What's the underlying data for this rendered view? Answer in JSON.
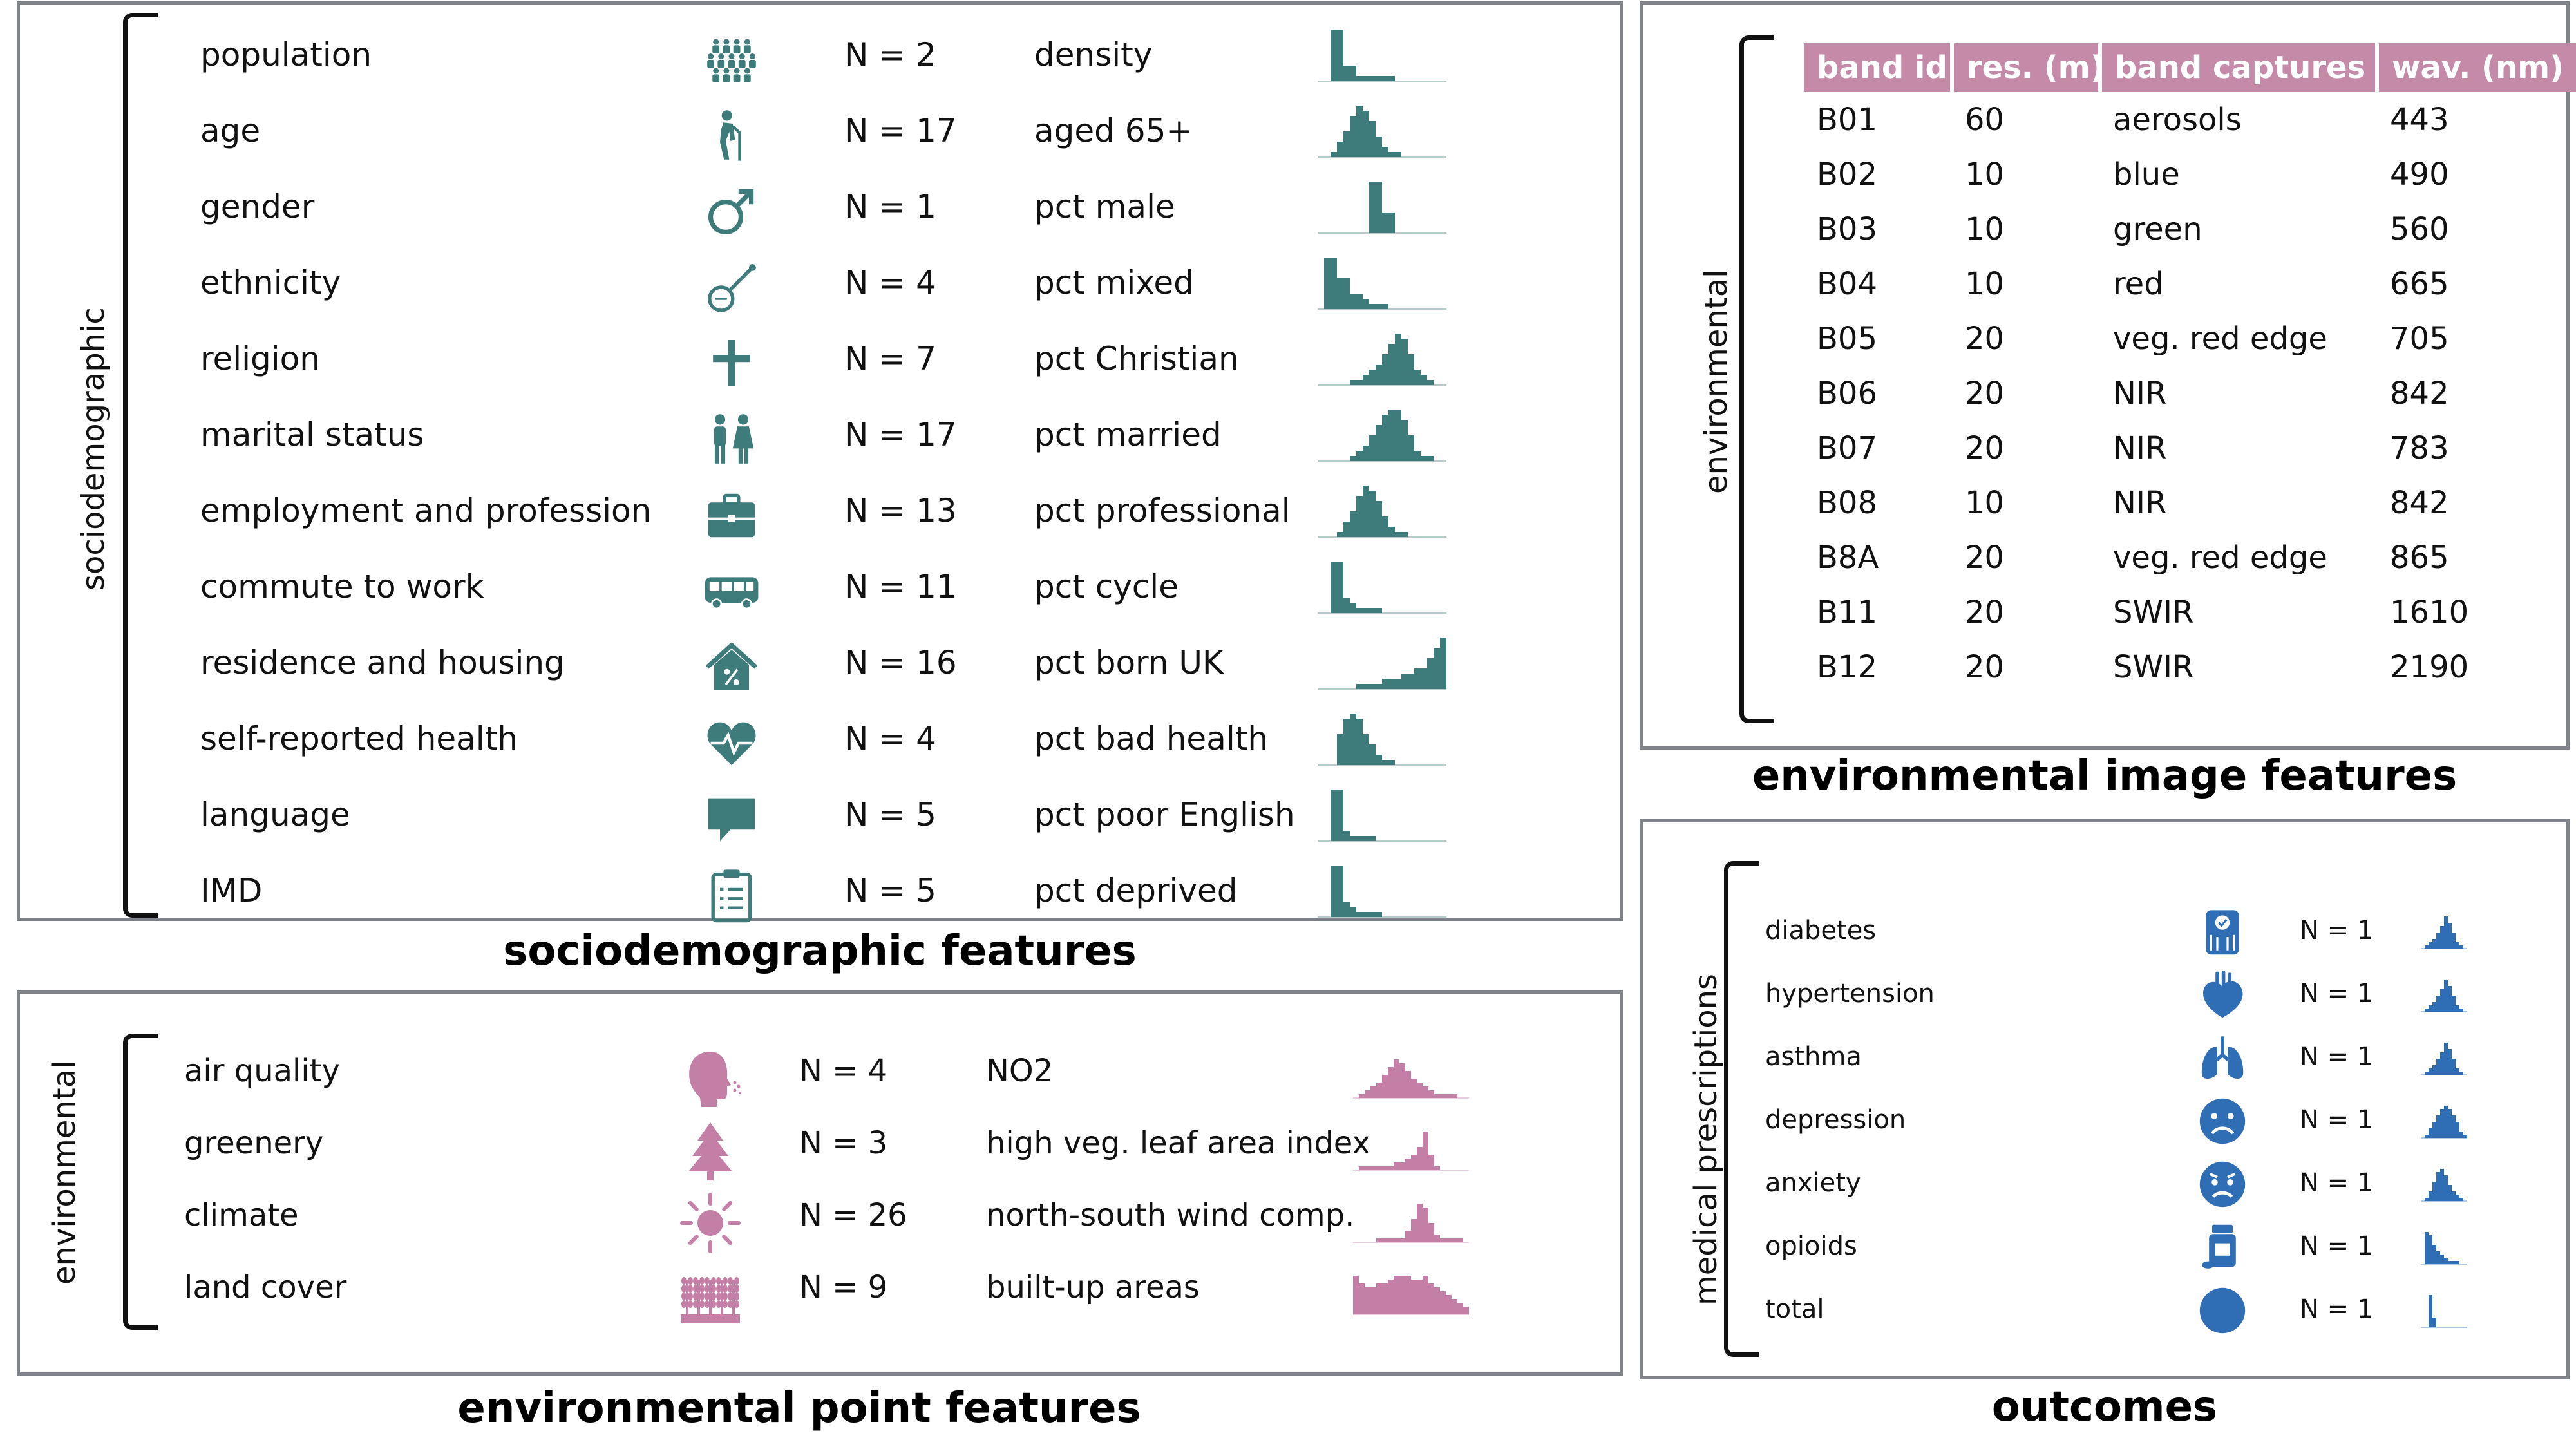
{
  "colors": {
    "socio": "#3e7b7b",
    "env_point": "#c47fa6",
    "outcomes": "#2f6db5",
    "table_header": "#c48aa8",
    "panel_border": "#7f8288"
  },
  "sociodemographic": {
    "side_label": "sociodemographic",
    "caption": "sociodemographic features",
    "rows": [
      {
        "name": "population",
        "icon": "population-icon",
        "count": "N = 2",
        "variable": "density",
        "hist": [
          0,
          0,
          10,
          10,
          3,
          3,
          1,
          1,
          1,
          1,
          1,
          1,
          0,
          0,
          0,
          0,
          0,
          0,
          0,
          0
        ]
      },
      {
        "name": "age",
        "icon": "elderly-person-icon",
        "count": "N = 17",
        "variable": "aged 65+",
        "hist": [
          0,
          0,
          1,
          3,
          5,
          8,
          10,
          9,
          7,
          4,
          2,
          1,
          1,
          0,
          0,
          0,
          0,
          0,
          0,
          0
        ]
      },
      {
        "name": "gender",
        "icon": "male-symbol-icon",
        "count": "N = 1",
        "variable": "pct male",
        "hist": [
          0,
          0,
          0,
          0,
          0,
          0,
          0,
          0,
          10,
          10,
          4,
          4,
          0,
          0,
          0,
          0,
          0,
          0,
          0,
          0
        ]
      },
      {
        "name": "ethnicity",
        "icon": "banjo-icon",
        "count": "N = 4",
        "variable": "pct mixed",
        "hist": [
          0,
          10,
          10,
          6,
          6,
          3,
          3,
          2,
          1,
          1,
          1,
          0,
          0,
          0,
          0,
          0,
          0,
          0,
          0,
          0
        ]
      },
      {
        "name": "religion",
        "icon": "cross-icon",
        "count": "N =  7",
        "variable": "pct Christian",
        "hist": [
          0,
          0,
          0,
          0,
          0,
          1,
          1,
          2,
          3,
          4,
          6,
          8,
          10,
          9,
          6,
          3,
          2,
          1,
          0,
          0
        ]
      },
      {
        "name": "marital status",
        "icon": "couple-icon",
        "count": "N = 17",
        "variable": "pct married",
        "hist": [
          0,
          0,
          0,
          0,
          0,
          1,
          2,
          3,
          5,
          7,
          9,
          10,
          10,
          8,
          5,
          2,
          1,
          1,
          0,
          0
        ]
      },
      {
        "name": "employment  and profession",
        "icon": "briefcase-icon",
        "count": "N = 13",
        "variable": "pct professional",
        "hist": [
          0,
          0,
          0,
          1,
          3,
          5,
          8,
          10,
          9,
          7,
          4,
          2,
          1,
          1,
          0,
          0,
          0,
          0,
          0,
          0
        ]
      },
      {
        "name": "commute to work",
        "icon": "bus-icon",
        "count": "N = 11",
        "variable": "pct cycle",
        "hist": [
          0,
          0,
          10,
          10,
          3,
          2,
          1,
          1,
          1,
          1,
          0,
          0,
          0,
          0,
          0,
          0,
          0,
          0,
          0,
          0
        ]
      },
      {
        "name": "residence and housing",
        "icon": "house-percent-icon",
        "count": "N =  16",
        "variable": "pct born UK",
        "hist": [
          0,
          0,
          0,
          0,
          0,
          0,
          1,
          1,
          1,
          1,
          2,
          2,
          2,
          3,
          3,
          4,
          4,
          6,
          8,
          10
        ]
      },
      {
        "name": "self-reported health",
        "icon": "heart-pulse-icon",
        "count": "N = 4",
        "variable": "pct bad health",
        "hist": [
          0,
          0,
          0,
          6,
          9,
          10,
          9,
          6,
          4,
          2,
          1,
          1,
          0,
          0,
          0,
          0,
          0,
          0,
          0,
          0
        ]
      },
      {
        "name": "language",
        "icon": "speech-bubble-icon",
        "count": "N = 5",
        "variable": "pct poor English",
        "hist": [
          0,
          0,
          10,
          10,
          2,
          1,
          1,
          1,
          1,
          0,
          0,
          0,
          0,
          0,
          0,
          0,
          0,
          0,
          0,
          0
        ]
      },
      {
        "name": "IMD",
        "icon": "clipboard-icon",
        "count": "N = 5",
        "variable": "pct deprived",
        "hist": [
          0,
          0,
          10,
          10,
          3,
          2,
          1,
          1,
          1,
          1,
          0,
          0,
          0,
          0,
          0,
          0,
          0,
          0,
          0,
          0
        ]
      }
    ]
  },
  "environmental_point": {
    "side_label": "environmental",
    "caption": "environmental point features",
    "rows": [
      {
        "name": "air quality",
        "icon": "breathing-head-icon",
        "count": "N = 4",
        "variable": "NO2",
        "hist": [
          0,
          1,
          2,
          3,
          4,
          6,
          8,
          10,
          9,
          7,
          5,
          4,
          3,
          2,
          1,
          1,
          1,
          1,
          0,
          0
        ]
      },
      {
        "name": "greenery",
        "icon": "tree-icon",
        "count": "N = 3",
        "variable": "high veg. leaf area index",
        "hist": [
          0,
          1,
          1,
          1,
          1,
          1,
          1,
          2,
          2,
          3,
          4,
          6,
          10,
          4,
          1,
          0,
          0,
          0,
          0,
          0
        ]
      },
      {
        "name": "climate",
        "icon": "sun-icon",
        "count": "N = 26",
        "variable": "north-south wind comp.",
        "hist": [
          0,
          0,
          0,
          0,
          1,
          1,
          1,
          1,
          1,
          3,
          6,
          10,
          9,
          5,
          2,
          1,
          1,
          1,
          1,
          0
        ]
      },
      {
        "name": "land cover",
        "icon": "wheat-field-icon",
        "count": "N = 9",
        "variable": "built-up areas",
        "hist": [
          10,
          8,
          7,
          7,
          8,
          8,
          9,
          10,
          10,
          10,
          9,
          9,
          10,
          8,
          7,
          6,
          5,
          4,
          3,
          2
        ]
      }
    ]
  },
  "environmental_image": {
    "side_label": "environmental",
    "caption": "environmental image features",
    "headers": [
      "band id",
      "res. (m)",
      "band captures",
      "wav. (nm)"
    ],
    "rows": [
      [
        "B01",
        "60",
        "aerosols",
        "443"
      ],
      [
        "B02",
        "10",
        "blue",
        "490"
      ],
      [
        "B03",
        "10",
        "green",
        "560"
      ],
      [
        "B04",
        "10",
        "red",
        "665"
      ],
      [
        "B05",
        "20",
        "veg. red edge",
        "705"
      ],
      [
        "B06",
        "20",
        "NIR",
        "842"
      ],
      [
        "B07",
        "20",
        "NIR",
        "783"
      ],
      [
        "B08",
        "10",
        "NIR",
        "842"
      ],
      [
        "B8A",
        "20",
        "veg. red edge",
        "865"
      ],
      [
        "B11",
        "20",
        "SWIR",
        "1610"
      ],
      [
        "B12",
        "20",
        "SWIR",
        "2190"
      ]
    ]
  },
  "outcomes": {
    "side_label": "medical prescriptions",
    "caption": "outcomes",
    "rows": [
      {
        "name": "diabetes",
        "icon": "glucose-meter-icon",
        "count": "N = 1",
        "hist": [
          0,
          1,
          2,
          3,
          5,
          7,
          10,
          8,
          5,
          2,
          1,
          0
        ]
      },
      {
        "name": "hypertension",
        "icon": "heart-icon",
        "count": "N = 1",
        "hist": [
          0,
          1,
          2,
          3,
          5,
          7,
          10,
          8,
          5,
          2,
          1,
          0
        ]
      },
      {
        "name": "asthma",
        "icon": "lungs-icon",
        "count": "N = 1",
        "hist": [
          0,
          1,
          2,
          3,
          5,
          7,
          10,
          8,
          5,
          2,
          1,
          0
        ]
      },
      {
        "name": "depression",
        "icon": "sad-face-icon",
        "count": "N = 1",
        "hist": [
          0,
          1,
          3,
          5,
          7,
          9,
          10,
          9,
          7,
          5,
          2,
          1
        ]
      },
      {
        "name": "anxiety",
        "icon": "worried-face-icon",
        "count": "N = 1",
        "hist": [
          0,
          1,
          3,
          6,
          9,
          10,
          8,
          5,
          3,
          2,
          1,
          0
        ]
      },
      {
        "name": "opioids",
        "icon": "pill-bottle-icon",
        "count": "N = 1",
        "hist": [
          0,
          10,
          9,
          6,
          4,
          3,
          2,
          1,
          1,
          1,
          0,
          0
        ]
      },
      {
        "name": "total",
        "icon": "circle-icon",
        "count": "N = 1",
        "hist": [
          0,
          0,
          10,
          3,
          0,
          0,
          0,
          0,
          0,
          0,
          0,
          0
        ]
      }
    ]
  }
}
